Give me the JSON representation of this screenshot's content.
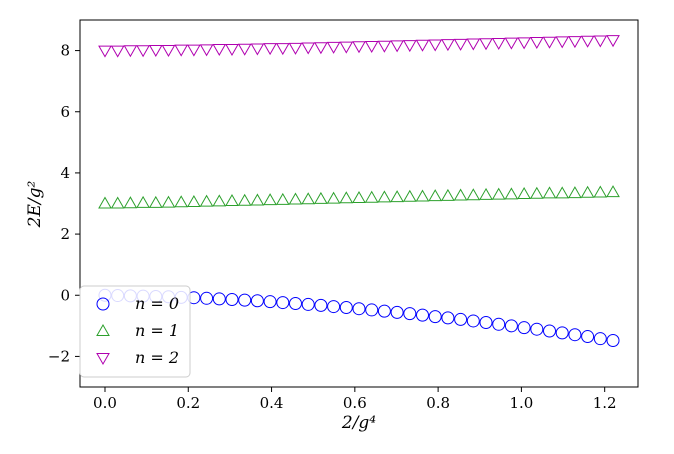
{
  "chart_data": {
    "type": "scatter",
    "title": "",
    "xlabel": "2/g⁴",
    "ylabel": "2E/g²",
    "xlim": [
      -0.06,
      1.28
    ],
    "ylim": [
      -3.0,
      9.0
    ],
    "xticks": [
      0.0,
      0.2,
      0.4,
      0.6,
      0.8,
      1.0,
      1.2
    ],
    "xtick_labels": [
      "0.0",
      "0.2",
      "0.4",
      "0.6",
      "0.8",
      "1.0",
      "1.2"
    ],
    "yticks": [
      -2,
      0,
      2,
      4,
      6,
      8
    ],
    "ytick_labels": [
      "−2",
      "0",
      "2",
      "4",
      "6",
      "8"
    ],
    "grid": false,
    "legend_position": "lower-left",
    "x": [
      0.0,
      0.0305,
      0.061,
      0.0915,
      0.122,
      0.1525,
      0.183,
      0.2135,
      0.244,
      0.2745,
      0.305,
      0.3355,
      0.366,
      0.3965,
      0.427,
      0.4575,
      0.488,
      0.5185,
      0.549,
      0.5795,
      0.61,
      0.6405,
      0.671,
      0.7015,
      0.732,
      0.7625,
      0.793,
      0.8235,
      0.854,
      0.8845,
      0.915,
      0.9455,
      0.976,
      1.0065,
      1.037,
      1.0675,
      1.098,
      1.1285,
      1.159,
      1.1895,
      1.22
    ],
    "series": [
      {
        "name": "n = 0",
        "marker": "circle",
        "color": "#0000ff",
        "values": [
          0.0,
          -0.01,
          -0.02,
          -0.03,
          -0.04,
          -0.05,
          -0.07,
          -0.08,
          -0.1,
          -0.12,
          -0.14,
          -0.16,
          -0.18,
          -0.21,
          -0.24,
          -0.27,
          -0.3,
          -0.33,
          -0.37,
          -0.4,
          -0.44,
          -0.48,
          -0.52,
          -0.56,
          -0.6,
          -0.65,
          -0.7,
          -0.74,
          -0.79,
          -0.84,
          -0.89,
          -0.95,
          -1.0,
          -1.06,
          -1.11,
          -1.17,
          -1.23,
          -1.29,
          -1.35,
          -1.42,
          -1.48
        ]
      },
      {
        "name": "n = 1",
        "marker": "triangle-up",
        "color": "#2ca02c",
        "values": [
          3.0,
          3.0,
          3.01,
          3.02,
          3.02,
          3.03,
          3.04,
          3.05,
          3.06,
          3.07,
          3.08,
          3.09,
          3.1,
          3.11,
          3.12,
          3.13,
          3.14,
          3.15,
          3.16,
          3.17,
          3.18,
          3.19,
          3.2,
          3.21,
          3.22,
          3.23,
          3.24,
          3.25,
          3.26,
          3.27,
          3.28,
          3.29,
          3.3,
          3.31,
          3.32,
          3.33,
          3.33,
          3.34,
          3.35,
          3.36,
          3.37
        ]
      },
      {
        "name": "n = 2",
        "marker": "triangle-down",
        "color": "#b000b0",
        "values": [
          8.0,
          8.0,
          8.01,
          8.01,
          8.02,
          8.02,
          8.03,
          8.03,
          8.04,
          8.05,
          8.05,
          8.06,
          8.07,
          8.08,
          8.08,
          8.09,
          8.1,
          8.11,
          8.12,
          8.13,
          8.14,
          8.15,
          8.16,
          8.17,
          8.18,
          8.19,
          8.2,
          8.21,
          8.22,
          8.23,
          8.24,
          8.25,
          8.26,
          8.27,
          8.28,
          8.29,
          8.3,
          8.31,
          8.32,
          8.33,
          8.34
        ]
      }
    ]
  }
}
